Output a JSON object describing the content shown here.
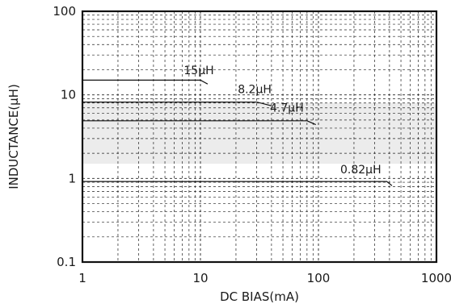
{
  "chart_data": {
    "type": "line",
    "xlabel": "DC BIAS(mA)",
    "ylabel": "INDUCTANCE(μH)",
    "x_scale": "log",
    "y_scale": "log",
    "xlim": [
      1,
      1000
    ],
    "ylim": [
      0.1,
      100
    ],
    "x_ticks": [
      {
        "value": 1,
        "label": "1"
      },
      {
        "value": 10,
        "label": "10"
      },
      {
        "value": 100,
        "label": "100"
      },
      {
        "value": 1000,
        "label": "1000"
      }
    ],
    "y_ticks": [
      {
        "value": 100,
        "label": "100"
      },
      {
        "value": 10,
        "label": "10"
      },
      {
        "value": 1,
        "label": "1"
      },
      {
        "value": 0.1,
        "label": "0.1"
      }
    ],
    "grid": true,
    "shaded_band": {
      "y_low": 1.5,
      "y_high": 8
    },
    "series": [
      {
        "name": "15μH",
        "x": [
          1,
          10,
          11.5
        ],
        "y": [
          15,
          15,
          13.5
        ]
      },
      {
        "name": "8.2μH",
        "x": [
          1,
          30,
          40
        ],
        "y": [
          8.2,
          8.2,
          7.4
        ]
      },
      {
        "name": "4.7μH",
        "x": [
          1,
          80,
          95
        ],
        "y": [
          4.9,
          4.9,
          4.4
        ]
      },
      {
        "name": "0.82μH",
        "x": [
          1,
          380,
          420
        ],
        "y": [
          0.92,
          0.92,
          0.82
        ]
      }
    ],
    "label_anchor_x": [
      13,
      40,
      75,
      340
    ],
    "label_anchor_y": [
      17,
      10,
      6,
      1.1
    ]
  }
}
